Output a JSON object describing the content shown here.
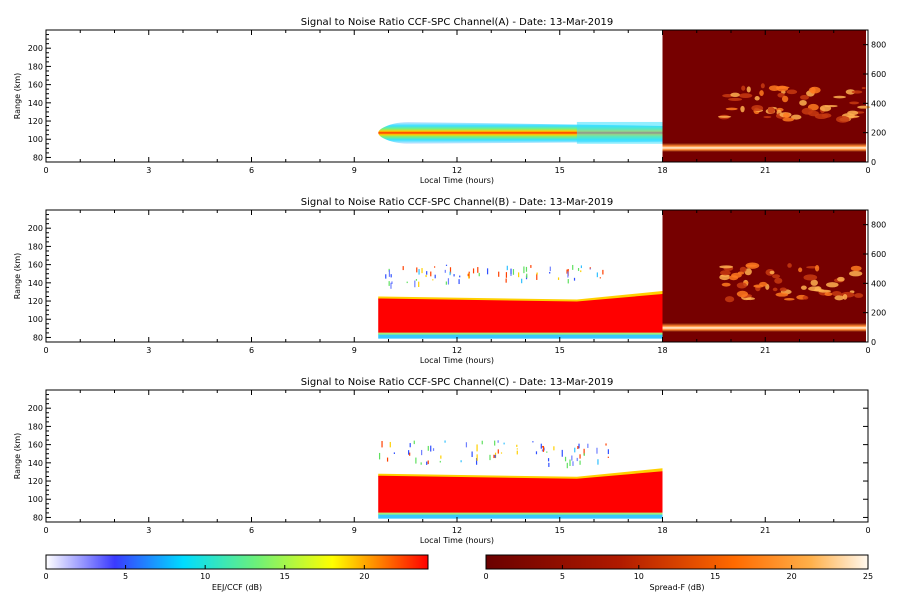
{
  "chart_data": {
    "type": "heatmap",
    "panels": [
      {
        "title": "Signal to Noise Ratio CCF-SPC Channel(A) - Date: 13-Mar-2019",
        "xlabel": "Local Time (hours)",
        "ylabel": "Range (km)",
        "xlim": [
          0,
          24
        ],
        "x_ticks": [
          "0",
          "3",
          "6",
          "9",
          "12",
          "15",
          "18",
          "21",
          "0"
        ],
        "ylim": [
          75,
          220
        ],
        "y_ticks": [
          "80",
          "100",
          "120",
          "140",
          "160",
          "180",
          "200"
        ],
        "y2lim": [
          0,
          900
        ],
        "y2_ticks": [
          "0",
          "200",
          "400",
          "600",
          "800"
        ],
        "eej_colorscale_db": [
          0,
          24
        ],
        "spread_f_colorscale_db": [
          0,
          25
        ],
        "eej_band": {
          "t_start": 9.7,
          "t_end": 18.0,
          "range_center_km": 107,
          "range_half_width_km": 12,
          "peak_db": 21
        },
        "spread_f_region": {
          "t_start": 18.0,
          "t_end": 24.0,
          "bottom_layer_range_km": [
            80,
            100
          ],
          "plume_range_km": [
            150,
            350
          ]
        }
      },
      {
        "title": "Signal to Noise Ratio CCF-SPC Channel(B) - Date: 13-Mar-2019",
        "xlabel": "Local Time (hours)",
        "ylabel": "Range (km)",
        "xlim": [
          0,
          24
        ],
        "x_ticks": [
          "0",
          "3",
          "6",
          "9",
          "12",
          "15",
          "18",
          "21",
          "0"
        ],
        "ylim": [
          75,
          220
        ],
        "y_ticks": [
          "80",
          "100",
          "120",
          "140",
          "160",
          "180",
          "200"
        ],
        "y2lim": [
          0,
          900
        ],
        "y2_ticks": [
          "0",
          "200",
          "400",
          "600",
          "800"
        ],
        "eej_band": {
          "t_start": 9.7,
          "t_end": 18.0,
          "range_bottom_km": 82,
          "range_top_km": 125,
          "peak_db": 24
        },
        "scatter_echoes": {
          "t_start": 9.7,
          "t_end": 16.5,
          "range_km": [
            140,
            160
          ]
        },
        "spread_f_region": {
          "t_start": 18.0,
          "t_end": 24.0,
          "bottom_layer_range_km": [
            80,
            100
          ],
          "plume_range_km": [
            150,
            350
          ]
        }
      },
      {
        "title": "Signal to Noise Ratio CCF-SPC Channel(C) - Date: 13-Mar-2019",
        "xlabel": "Local Time (hours)",
        "ylabel": "Range (km)",
        "xlim": [
          0,
          24
        ],
        "x_ticks": [
          "0",
          "3",
          "6",
          "9",
          "12",
          "15",
          "18",
          "21",
          "0"
        ],
        "ylim": [
          75,
          220
        ],
        "y_ticks": [
          "80",
          "100",
          "120",
          "140",
          "160",
          "180",
          "200"
        ],
        "eej_band": {
          "t_start": 9.7,
          "t_end": 18.0,
          "range_bottom_km": 82,
          "range_top_km": 128,
          "peak_db": 24
        },
        "scatter_echoes": {
          "t_start": 9.7,
          "t_end": 16.5,
          "range_km": [
            140,
            165
          ]
        }
      }
    ],
    "colorbars": [
      {
        "label": "EEJ/CCF (dB)",
        "ticks": [
          "0",
          "5",
          "10",
          "15",
          "20"
        ],
        "range": [
          0,
          24
        ],
        "colormap": "white-blue-cyan-green-yellow-red"
      },
      {
        "label": "Spread-F (dB)",
        "ticks": [
          "0",
          "5",
          "10",
          "15",
          "20",
          "25"
        ],
        "range": [
          0,
          25
        ],
        "colormap": "dark-red-orange-white"
      }
    ]
  }
}
